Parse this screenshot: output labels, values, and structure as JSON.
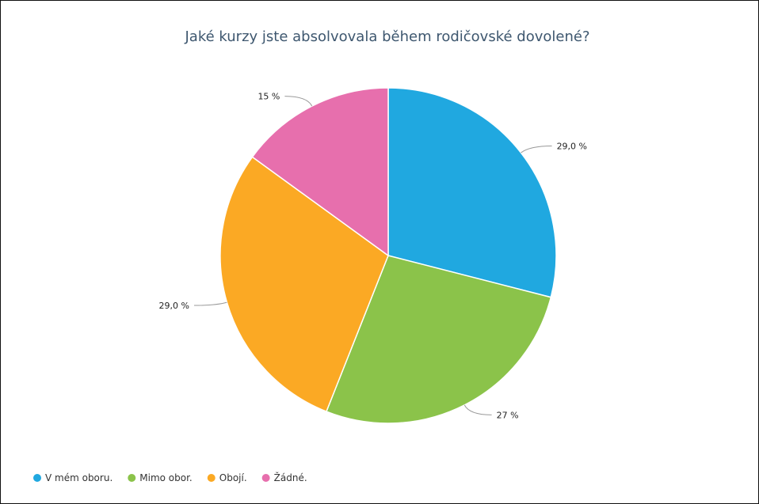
{
  "chart_data": {
    "type": "pie",
    "title": "Jaké kurzy jste absolvovala během rodičovské dovolené?",
    "categories": [
      "V mém oboru.",
      "Mimo obor.",
      "Obojí.",
      "Žádné."
    ],
    "values": [
      29.0,
      27,
      29.0,
      15
    ],
    "data_labels": [
      "29,0 %",
      "27 %",
      "29,0 %",
      "15 %"
    ],
    "colors": [
      "#20a8e0",
      "#8bc34a",
      "#fba924",
      "#e76fad"
    ],
    "start_angle_deg": 0,
    "direction": "clockwise",
    "legend_position": "bottom-left"
  }
}
